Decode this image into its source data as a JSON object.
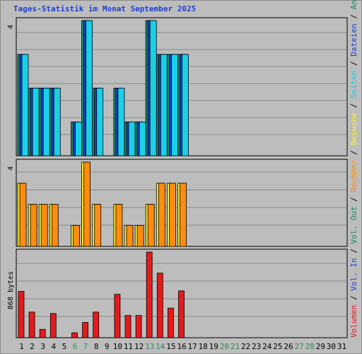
{
  "title": "Tages-Statistik im Monat September 2025",
  "colors": {
    "background": "#bdbdbd",
    "grid": "#8c8c8c",
    "title": "#1f3fd6",
    "anfragen": "#1d8a63",
    "dateien": "#1f3fd6",
    "seiten": "#19d0e8",
    "besuche": "#f3f33d",
    "rechner": "#ff8c10",
    "volumen": "#e51a1a",
    "day_normal": "#000000",
    "day_weekend": "#2e8b57"
  },
  "chart_data": [
    {
      "type": "bar",
      "panel": "hits",
      "y_max_label": "4",
      "ylim": [
        0,
        4
      ],
      "categories": [
        "1",
        "2",
        "3",
        "4",
        "5",
        "6",
        "7",
        "8",
        "9",
        "10",
        "11",
        "12",
        "13",
        "14",
        "15",
        "16",
        "17",
        "18",
        "19",
        "20",
        "21",
        "22",
        "23",
        "24",
        "25",
        "26",
        "27",
        "28",
        "29",
        "30",
        "31"
      ],
      "series": [
        {
          "name": "Anfragen",
          "color": "#1d8a63",
          "values": [
            3,
            2,
            2,
            2,
            0,
            1,
            4,
            2,
            0,
            2,
            1,
            1,
            4,
            3,
            3,
            3,
            0,
            0,
            0,
            0,
            0,
            0,
            0,
            0,
            0,
            0,
            0,
            0,
            0,
            0,
            0
          ]
        },
        {
          "name": "Dateien",
          "color": "#1f3fd6",
          "values": [
            3,
            2,
            2,
            2,
            0,
            1,
            4,
            2,
            0,
            2,
            1,
            1,
            4,
            3,
            3,
            3,
            0,
            0,
            0,
            0,
            0,
            0,
            0,
            0,
            0,
            0,
            0,
            0,
            0,
            0,
            0
          ]
        },
        {
          "name": "Seiten",
          "color": "#19d0e8",
          "values": [
            3,
            2,
            2,
            2,
            0,
            1,
            4,
            2,
            0,
            2,
            1,
            1,
            4,
            3,
            3,
            3,
            0,
            0,
            0,
            0,
            0,
            0,
            0,
            0,
            0,
            0,
            0,
            0,
            0,
            0,
            0
          ]
        }
      ]
    },
    {
      "type": "bar",
      "panel": "visits",
      "y_max_label": "4",
      "ylim": [
        0,
        4
      ],
      "categories": [
        "1",
        "2",
        "3",
        "4",
        "5",
        "6",
        "7",
        "8",
        "9",
        "10",
        "11",
        "12",
        "13",
        "14",
        "15",
        "16",
        "17",
        "18",
        "19",
        "20",
        "21",
        "22",
        "23",
        "24",
        "25",
        "26",
        "27",
        "28",
        "29",
        "30",
        "31"
      ],
      "series": [
        {
          "name": "Besuche",
          "color": "#f3f33d",
          "values": [
            3,
            2,
            2,
            2,
            0,
            1,
            4,
            2,
            0,
            2,
            1,
            1,
            2,
            3,
            3,
            3,
            0,
            0,
            0,
            0,
            0,
            0,
            0,
            0,
            0,
            0,
            0,
            0,
            0,
            0,
            0
          ]
        },
        {
          "name": "Rechner",
          "color": "#ff8c10",
          "values": [
            3,
            2,
            2,
            2,
            0,
            1,
            4,
            2,
            0,
            2,
            1,
            1,
            2,
            3,
            3,
            3,
            0,
            0,
            0,
            0,
            0,
            0,
            0,
            0,
            0,
            0,
            0,
            0,
            0,
            0,
            0
          ]
        }
      ]
    },
    {
      "type": "bar",
      "panel": "volume",
      "y_max_label": "868 bytes",
      "ylim": [
        0,
        868
      ],
      "categories": [
        "1",
        "2",
        "3",
        "4",
        "5",
        "6",
        "7",
        "8",
        "9",
        "10",
        "11",
        "12",
        "13",
        "14",
        "15",
        "16",
        "17",
        "18",
        "19",
        "20",
        "21",
        "22",
        "23",
        "24",
        "25",
        "26",
        "27",
        "28",
        "29",
        "30",
        "31"
      ],
      "series": [
        {
          "name": "Volumen",
          "color": "#e51a1a",
          "values": [
            470,
            260,
            85,
            245,
            0,
            50,
            155,
            260,
            0,
            440,
            225,
            225,
            868,
            655,
            300,
            475,
            0,
            0,
            0,
            0,
            0,
            0,
            0,
            0,
            0,
            0,
            0,
            0,
            0,
            0,
            0
          ]
        }
      ]
    }
  ],
  "weekend_days": [
    6,
    7,
    13,
    14,
    20,
    21,
    27,
    28
  ],
  "right_legend": [
    {
      "text": "Volumen",
      "color": "#e51a1a"
    },
    {
      "text": " / ",
      "color": "#000000"
    },
    {
      "text": "Vol. In",
      "color": "#1f3fd6"
    },
    {
      "text": " / ",
      "color": "#000000"
    },
    {
      "text": "Vol. Out",
      "color": "#1d8a63"
    },
    {
      "text": " / ",
      "color": "#000000"
    },
    {
      "text": "Rechner",
      "color": "#ff8c10"
    },
    {
      "text": " / ",
      "color": "#000000"
    },
    {
      "text": "Besuche",
      "color": "#f3f33d"
    },
    {
      "text": " / ",
      "color": "#000000"
    },
    {
      "text": "Seiten",
      "color": "#19d0e8"
    },
    {
      "text": " / ",
      "color": "#000000"
    },
    {
      "text": "Dateien",
      "color": "#1f3fd6"
    },
    {
      "text": " / ",
      "color": "#000000"
    },
    {
      "text": "Anfragen",
      "color": "#1d8a63"
    }
  ]
}
